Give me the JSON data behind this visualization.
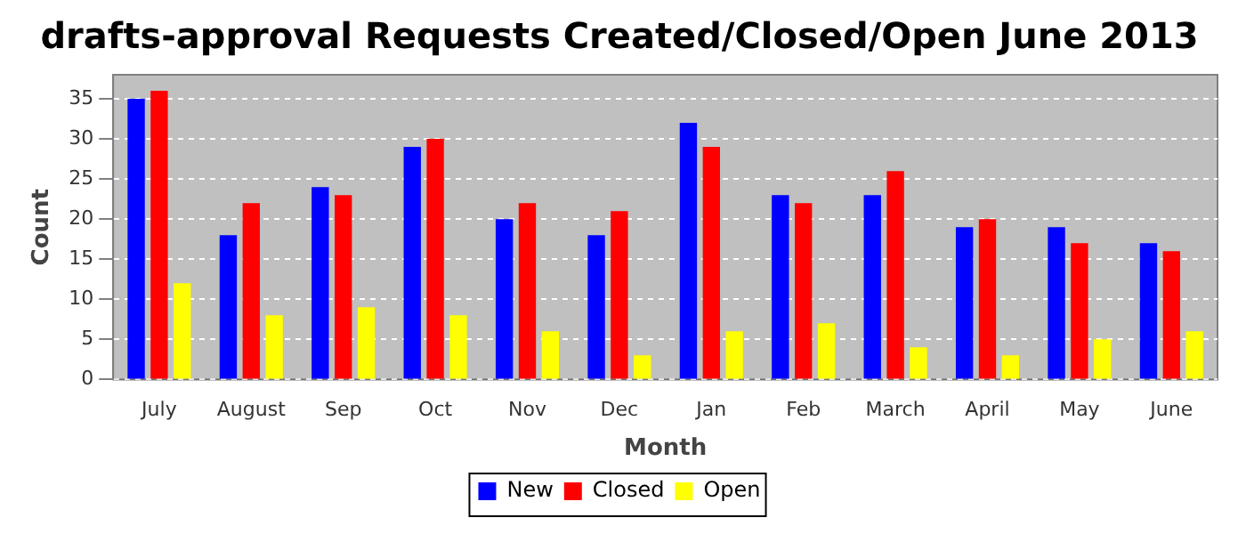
{
  "chart_data": {
    "type": "bar",
    "title": "drafts-approval Requests Created/Closed/Open June 2013",
    "xlabel": "Month",
    "ylabel": "Count",
    "categories": [
      "July",
      "August",
      "Sep",
      "Oct",
      "Nov",
      "Dec",
      "Jan",
      "Feb",
      "March",
      "April",
      "May",
      "June"
    ],
    "series": [
      {
        "name": "New",
        "color": "#0000ff",
        "values": [
          35,
          18,
          24,
          29,
          20,
          18,
          32,
          23,
          23,
          19,
          19,
          17
        ]
      },
      {
        "name": "Closed",
        "color": "#ff0000",
        "values": [
          36,
          22,
          23,
          30,
          22,
          21,
          29,
          22,
          26,
          20,
          17,
          16
        ]
      },
      {
        "name": "Open",
        "color": "#ffff00",
        "values": [
          12,
          8,
          9,
          8,
          6,
          3,
          6,
          7,
          4,
          3,
          5,
          6
        ]
      }
    ],
    "ylim": [
      0,
      38
    ],
    "yticks": [
      0,
      5,
      10,
      15,
      20,
      25,
      30,
      35
    ],
    "grid": "y",
    "legend": "bottom"
  }
}
